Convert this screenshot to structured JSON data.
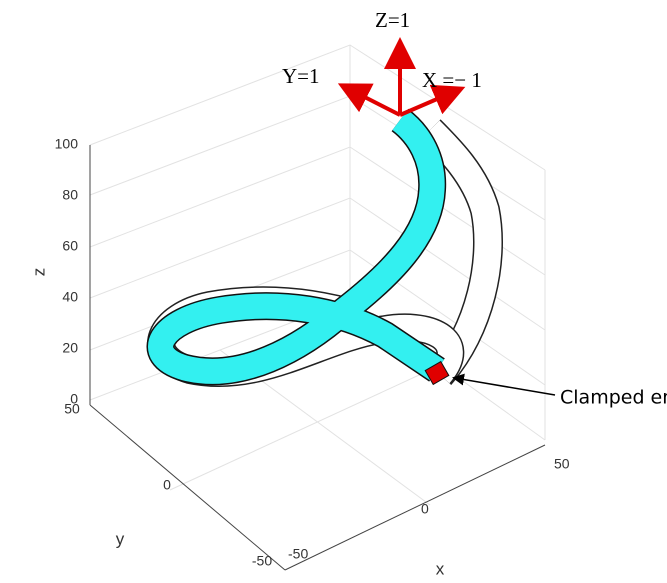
{
  "annotations": {
    "z_arrow": "Z=1",
    "y_arrow": "Y=1",
    "x_arrow": "X =− 1",
    "clamped": "Clamped end"
  },
  "axes": {
    "z": {
      "label": "z",
      "ticks": [
        "100",
        "80",
        "60",
        "40",
        "20",
        "0"
      ]
    },
    "y": {
      "label": "y",
      "ticks": [
        "50",
        "0",
        "-50"
      ]
    },
    "x": {
      "label": "x",
      "ticks": [
        "-50",
        "0",
        "50"
      ]
    }
  }
}
